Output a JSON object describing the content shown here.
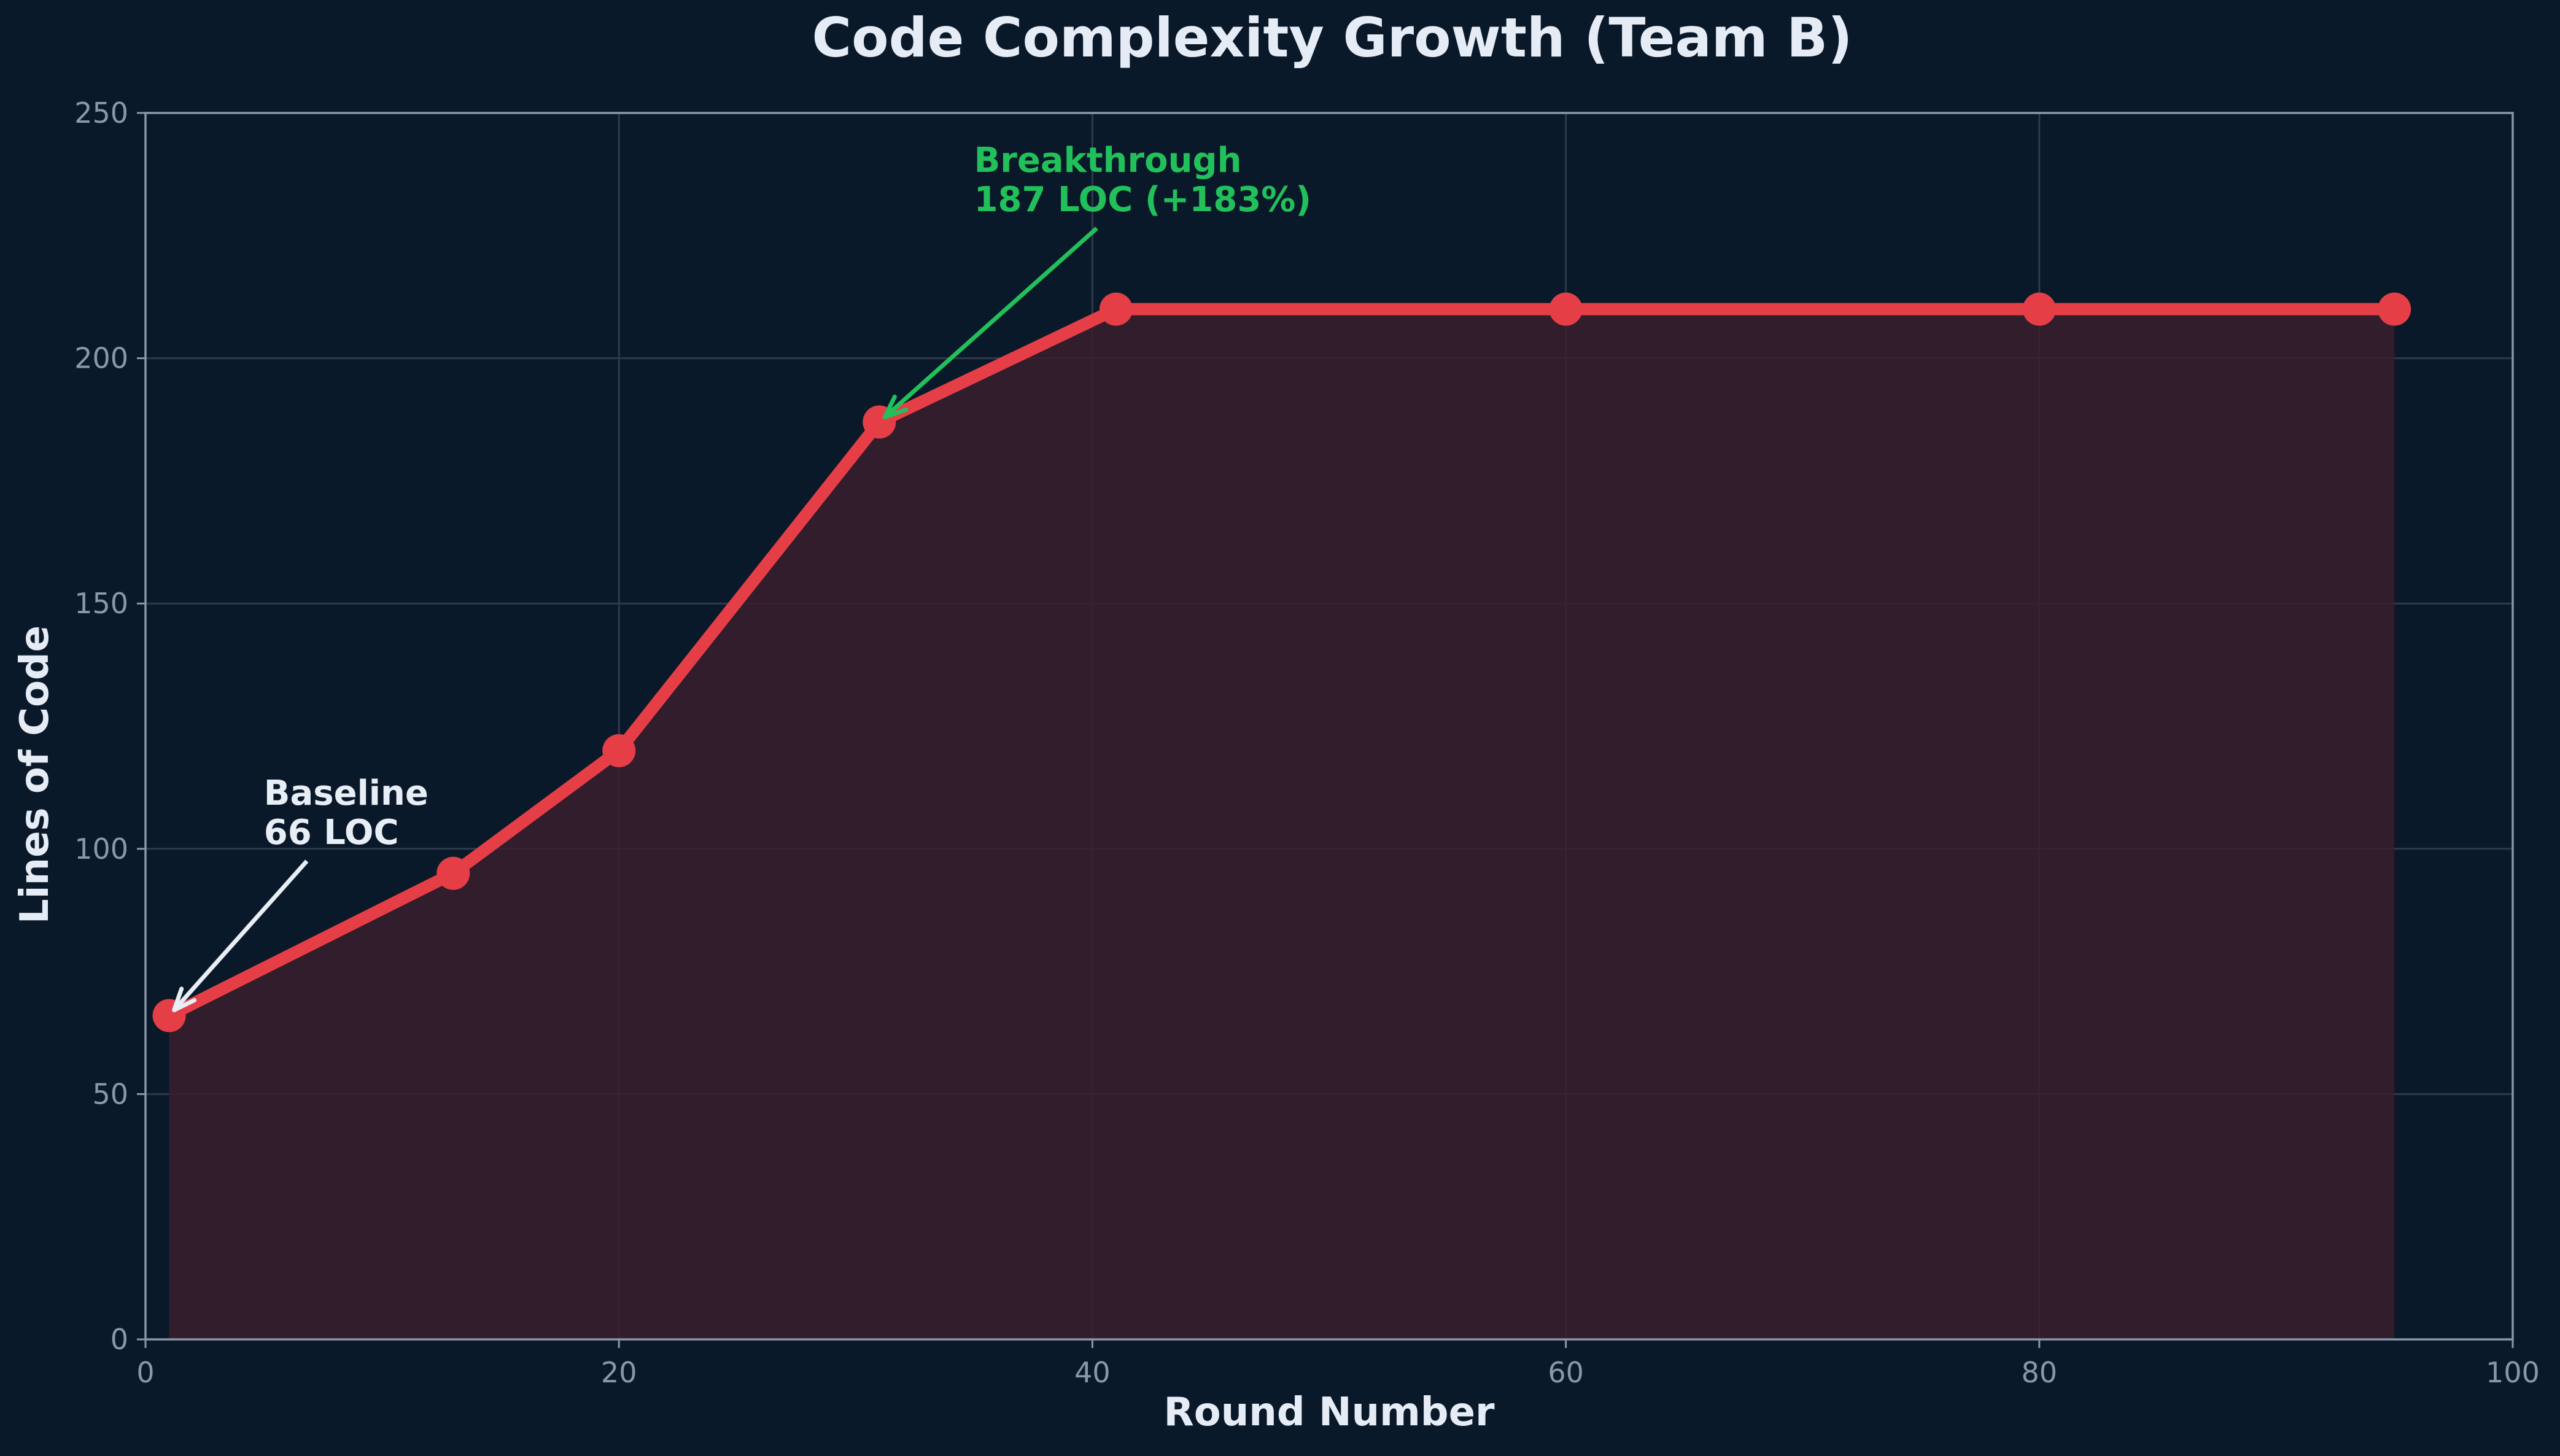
{
  "chart_data": {
    "type": "area",
    "title": "Code Complexity Growth (Team B)",
    "xlabel": "Round Number",
    "ylabel": "Lines of Code",
    "xlim": [
      0,
      100
    ],
    "ylim": [
      0,
      250
    ],
    "xticks": [
      0,
      20,
      40,
      60,
      80,
      100
    ],
    "yticks": [
      0,
      50,
      100,
      150,
      200,
      250
    ],
    "grid": true,
    "series": [
      {
        "x": [
          1,
          13,
          20,
          31,
          41,
          60,
          80,
          95
        ],
        "y": [
          66,
          95,
          120,
          187,
          210,
          210,
          210,
          210
        ],
        "color": "#e63e46",
        "fill_color": "#3a1f2e"
      }
    ],
    "annotations": [
      {
        "lines": [
          "Baseline",
          "66 LOC"
        ],
        "x": 1,
        "y": 66,
        "text_x": 5,
        "text_y": 100,
        "color": "#e8eef5"
      },
      {
        "lines": [
          "Breakthrough",
          "187 LOC (+183%)"
        ],
        "x": 31,
        "y": 187,
        "text_x": 35,
        "text_y": 229,
        "color": "#22c05a"
      }
    ]
  },
  "colors": {
    "background": "#0a1929",
    "grid": "#2e3a4c",
    "axis": "#8a97ab",
    "tick_label": "#8a97ab",
    "title": "#e6ecf5"
  }
}
